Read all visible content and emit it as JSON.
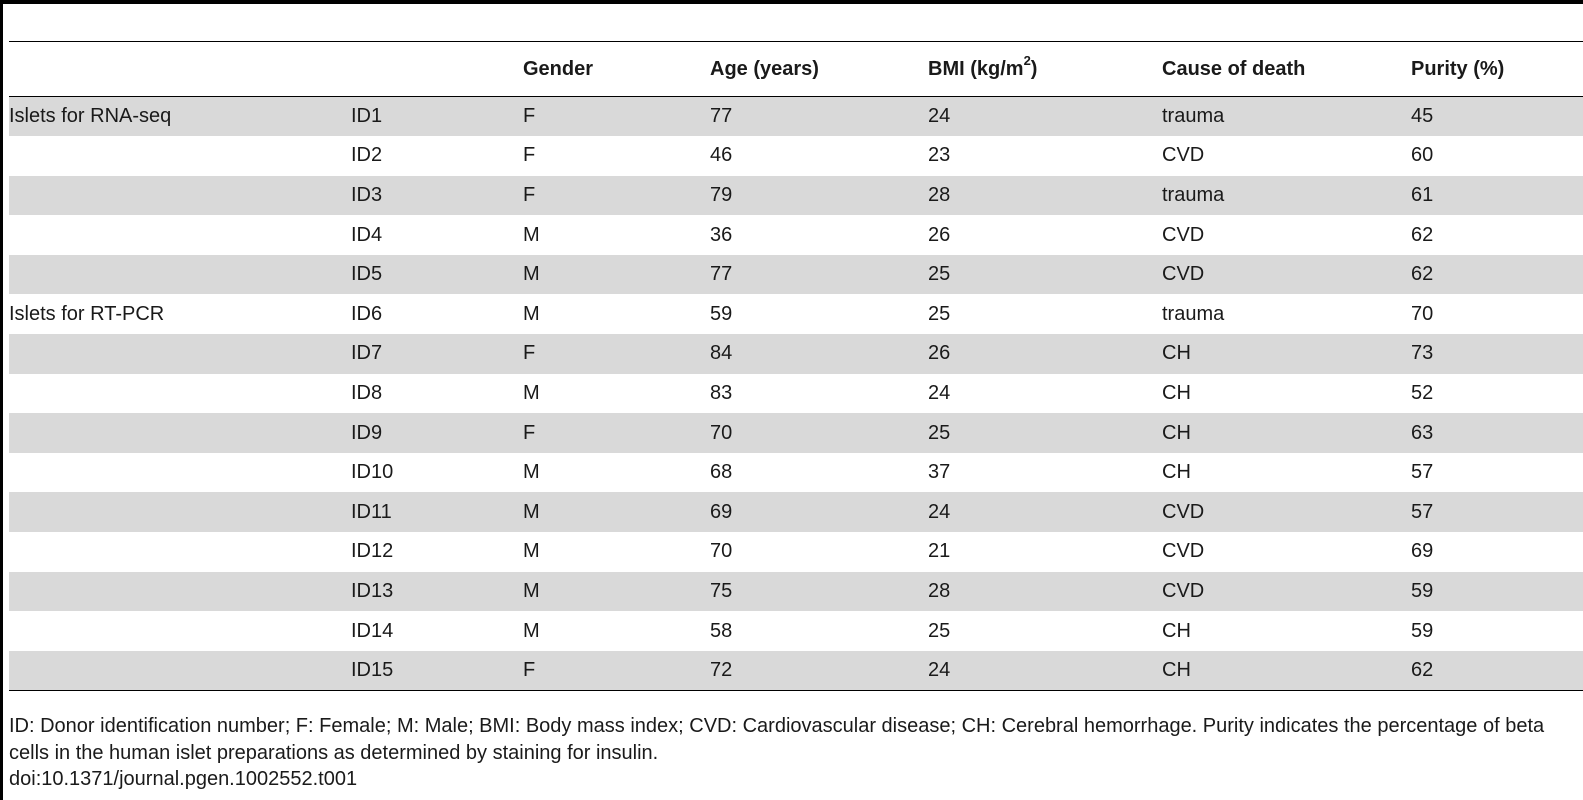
{
  "table": {
    "headers": {
      "group": "",
      "id": "",
      "gender": "Gender",
      "age": "Age (years)",
      "bmi": "BMI (kg/m",
      "bmi_sup": "2",
      "bmi_close": ")",
      "cause": "Cause of death",
      "purity": "Purity (%)"
    },
    "rows": [
      {
        "group": "Islets for RNA-seq",
        "id": "ID1",
        "gender": "F",
        "age": "77",
        "bmi": "24",
        "cause": "trauma",
        "purity": "45"
      },
      {
        "group": "",
        "id": "ID2",
        "gender": "F",
        "age": "46",
        "bmi": "23",
        "cause": "CVD",
        "purity": "60"
      },
      {
        "group": "",
        "id": "ID3",
        "gender": "F",
        "age": "79",
        "bmi": "28",
        "cause": "trauma",
        "purity": "61"
      },
      {
        "group": "",
        "id": "ID4",
        "gender": "M",
        "age": "36",
        "bmi": "26",
        "cause": "CVD",
        "purity": "62"
      },
      {
        "group": "",
        "id": "ID5",
        "gender": "M",
        "age": "77",
        "bmi": "25",
        "cause": "CVD",
        "purity": "62"
      },
      {
        "group": "Islets for RT-PCR",
        "id": "ID6",
        "gender": "M",
        "age": "59",
        "bmi": "25",
        "cause": "trauma",
        "purity": "70"
      },
      {
        "group": "",
        "id": "ID7",
        "gender": "F",
        "age": "84",
        "bmi": "26",
        "cause": "CH",
        "purity": "73"
      },
      {
        "group": "",
        "id": "ID8",
        "gender": "M",
        "age": "83",
        "bmi": "24",
        "cause": "CH",
        "purity": "52"
      },
      {
        "group": "",
        "id": "ID9",
        "gender": "F",
        "age": "70",
        "bmi": "25",
        "cause": "CH",
        "purity": "63"
      },
      {
        "group": "",
        "id": "ID10",
        "gender": "M",
        "age": "68",
        "bmi": "37",
        "cause": "CH",
        "purity": "57"
      },
      {
        "group": "",
        "id": "ID11",
        "gender": "M",
        "age": "69",
        "bmi": "24",
        "cause": "CVD",
        "purity": "57"
      },
      {
        "group": "",
        "id": "ID12",
        "gender": "M",
        "age": "70",
        "bmi": "21",
        "cause": "CVD",
        "purity": "69"
      },
      {
        "group": "",
        "id": "ID13",
        "gender": "M",
        "age": "75",
        "bmi": "28",
        "cause": "CVD",
        "purity": "59"
      },
      {
        "group": "",
        "id": "ID14",
        "gender": "M",
        "age": "58",
        "bmi": "25",
        "cause": "CH",
        "purity": "59"
      },
      {
        "group": "",
        "id": "ID15",
        "gender": "F",
        "age": "72",
        "bmi": "24",
        "cause": "CH",
        "purity": "62"
      }
    ]
  },
  "footnote": "ID: Donor identification number; F: Female; M: Male; BMI: Body mass index; CVD: Cardiovascular disease; CH: Cerebral hemorrhage. Purity indicates the percentage of beta cells in the human islet preparations as determined by staining for insulin.",
  "doi": "doi:10.1371/journal.pgen.1002552.t001",
  "colors": {
    "row_shade": "#d9d9d9",
    "rule": "#000000",
    "text": "#1a1a1a"
  }
}
